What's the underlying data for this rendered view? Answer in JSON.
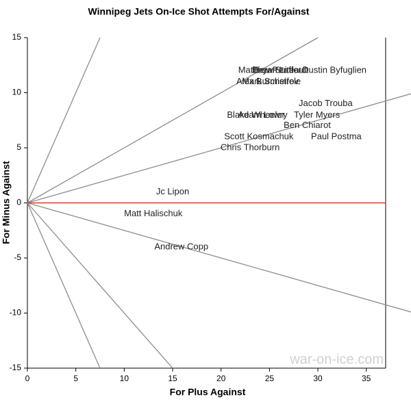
{
  "chart_data": {
    "type": "scatter",
    "title": "Winnipeg Jets On-Ice Shot Attempts For/Against",
    "x_label": "For Plus Against",
    "y_label": "For Minus Against",
    "watermark": "war-on-ice.com",
    "names": [
      "Mathieu Perreault",
      "Bryan Little",
      "Drew Stafford",
      "Dustin Byfuglien",
      "Alex Burmistrov",
      "Mark Scheifele",
      "Jacob Trouba",
      "Blake Wheeler",
      "Adam Lowry",
      "Tyler Myers",
      "Ben Chiarot",
      "Scott Kosmachuk",
      "Paul Postma",
      "Chris Thorburn",
      "Jc Lipon",
      "Matt Halischuk",
      "Andrew Copp"
    ],
    "x": [
      25.4,
      25.7,
      26.0,
      31.7,
      24.8,
      25.2,
      30.8,
      23.6,
      24.3,
      29.9,
      28.9,
      23.9,
      31.9,
      23.0,
      15.0,
      13.0,
      15.9
    ],
    "y": [
      12.0,
      12.0,
      12.0,
      12.0,
      11.0,
      11.0,
      9.0,
      7.95,
      7.95,
      7.95,
      7.0,
      6.0,
      6.0,
      5.0,
      1.0,
      -1.0,
      -4.0
    ],
    "reference_slopes": [
      2,
      0.5,
      0.25,
      -0.25,
      -1,
      -2
    ],
    "zero_line_color": "#e8352a",
    "reference_color": "#8c8c8c",
    "xlim": [
      0,
      37
    ],
    "ylim": [
      -15,
      15
    ],
    "xticks": [
      0,
      5,
      10,
      15,
      20,
      25,
      30,
      35
    ],
    "yticks": [
      -15,
      -10,
      -5,
      0,
      5,
      10,
      15
    ]
  }
}
